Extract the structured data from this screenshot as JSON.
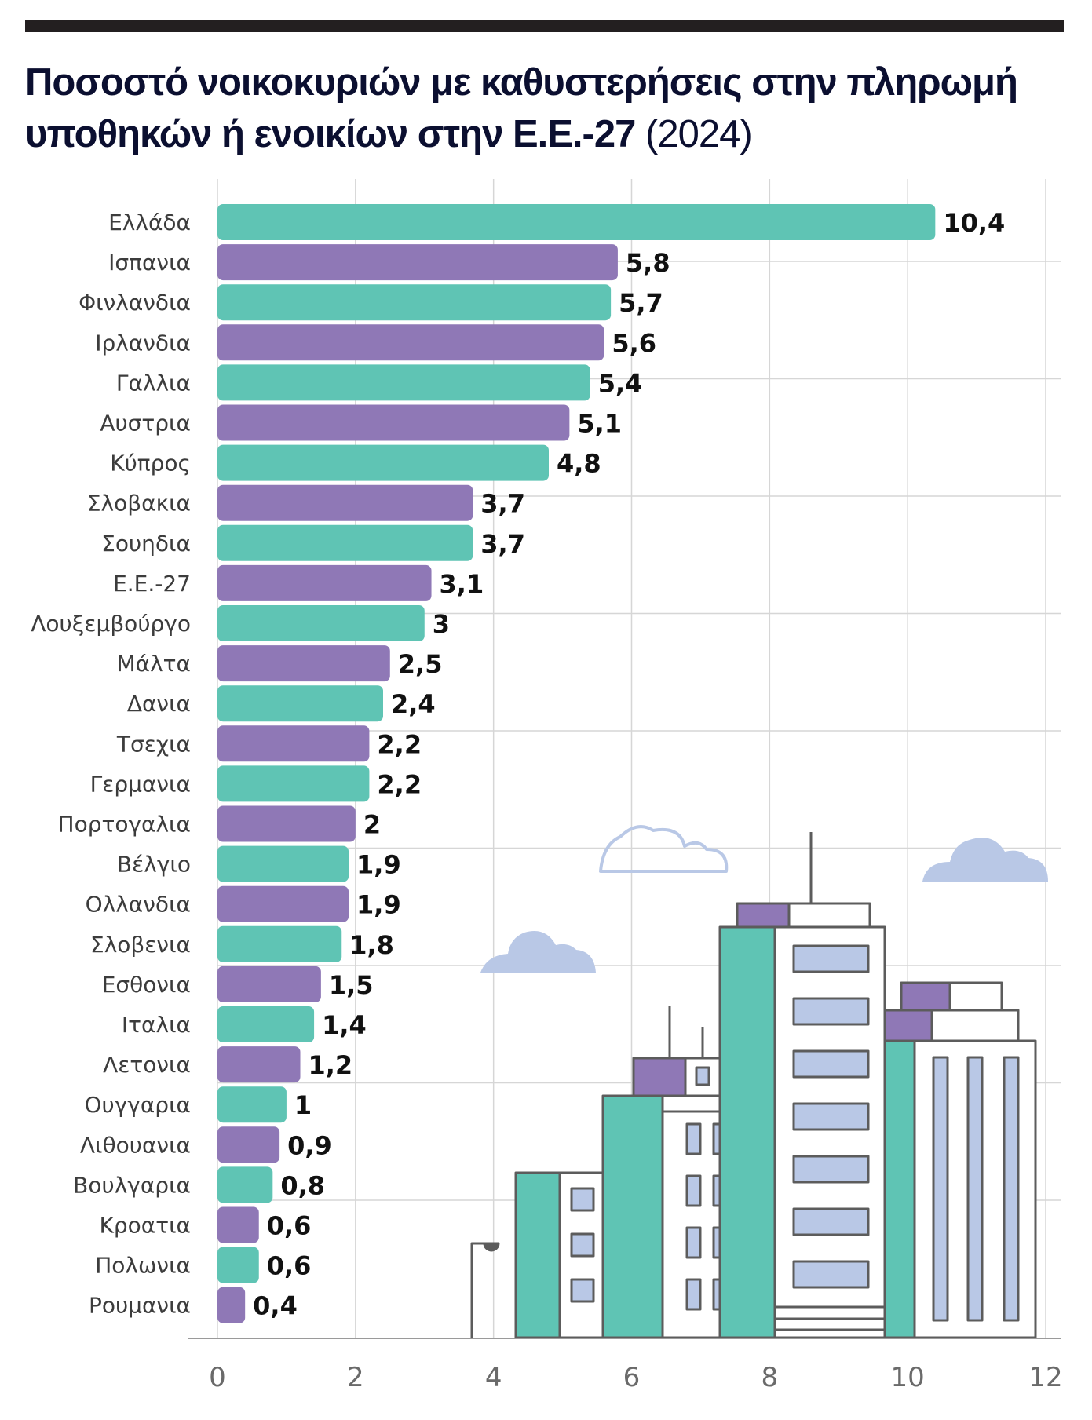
{
  "title": {
    "main": "Ποσοστό νοικοκυριών με καθυστερήσεις στην πληρωμή υποθηκών ή ενοικίων στην Ε.Ε.-27",
    "year": "(2024)"
  },
  "colors": {
    "teal": "#5fc4b4",
    "purple": "#8f78b6",
    "grid": "#d6d6d6",
    "axis": "#9a9a9a",
    "title": "#0b0f30"
  },
  "chart_data": {
    "type": "bar",
    "orientation": "horizontal",
    "categories": [
      "Ελλάδα",
      "Ισπανια",
      "Φινλανδια",
      "Ιρλανδια",
      "Γαλλια",
      "Αυστρια",
      "Κύπρος",
      "Σλοβακια",
      "Σουηδια",
      "Ε.Ε.-27",
      "Λουξεμβούργο",
      "Μάλτα",
      "Δανια",
      "Τσεχια",
      "Γερμανια",
      "Πορτογαλια",
      "Βέλγιο",
      "Ολλανδια",
      "Σλοβενια",
      "Εσθονια",
      "Ιταλια",
      "Λετονια",
      "Ουγγαρια",
      "Λιθουανια",
      "Βουλγαρια",
      "Κροατια",
      "Πολωνια",
      "Ρουμανια"
    ],
    "values": [
      10.4,
      5.8,
      5.7,
      5.6,
      5.4,
      5.1,
      4.8,
      3.7,
      3.7,
      3.1,
      3,
      2.5,
      2.4,
      2.2,
      2.2,
      2,
      1.9,
      1.9,
      1.8,
      1.5,
      1.4,
      1.2,
      1,
      0.9,
      0.8,
      0.6,
      0.6,
      0.4
    ],
    "value_labels": [
      "10,4",
      "5,8",
      "5,7",
      "5,6",
      "5,4",
      "5,1",
      "4,8",
      "3,7",
      "3,7",
      "3,1",
      "3",
      "2,5",
      "2,4",
      "2,2",
      "2,2",
      "2",
      "1,9",
      "1,9",
      "1,8",
      "1,5",
      "1,4",
      "1,2",
      "1",
      "0,9",
      "0,8",
      "0,6",
      "0,6",
      "0,4"
    ],
    "xlim": [
      0,
      12
    ],
    "xticks": [
      0,
      2,
      4,
      6,
      8,
      10,
      12
    ],
    "xtick_labels": [
      "0",
      "2",
      "4",
      "6",
      "8",
      "10",
      "12"
    ],
    "grid": true,
    "bar_colors": "alternating teal and purple"
  }
}
